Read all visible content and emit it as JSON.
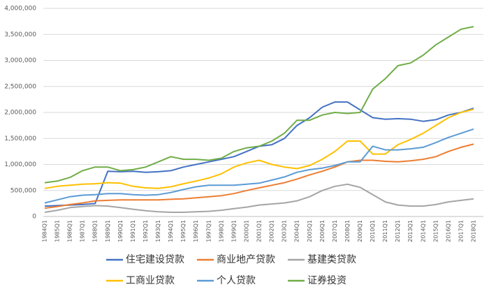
{
  "chart_data": {
    "type": "line",
    "categories": [
      "1984Q1",
      "1985Q1",
      "1986Q1",
      "1987Q1",
      "1988Q1",
      "1989Q1",
      "1990Q1",
      "1991Q1",
      "1992Q1",
      "1993Q1",
      "1994Q1",
      "1995Q1",
      "1996Q1",
      "1997Q1",
      "1998Q1",
      "1999Q1",
      "2000Q1",
      "2001Q1",
      "2002Q1",
      "2003Q1",
      "2004Q1",
      "2005Q1",
      "2006Q1",
      "2007Q1",
      "2008Q1",
      "2009Q1",
      "2010Q1",
      "2011Q1",
      "2012Q1",
      "2013Q1",
      "2014Q1",
      "2015Q1",
      "2016Q1",
      "2017Q1",
      "2018Q1"
    ],
    "series": [
      {
        "name": "住宅建设贷款",
        "color": "#4472c4",
        "values": [
          200000,
          210000,
          220000,
          230000,
          250000,
          870000,
          860000,
          870000,
          850000,
          860000,
          880000,
          950000,
          1000000,
          1050000,
          1100000,
          1150000,
          1250000,
          1350000,
          1380000,
          1500000,
          1750000,
          1900000,
          2100000,
          2200000,
          2200000,
          2050000,
          1900000,
          1870000,
          1880000,
          1870000,
          1830000,
          1860000,
          1950000,
          2000000,
          2080000
        ]
      },
      {
        "name": "商业地产贷款",
        "color": "#ed7d31",
        "values": [
          160000,
          190000,
          230000,
          260000,
          300000,
          310000,
          320000,
          320000,
          320000,
          320000,
          330000,
          340000,
          360000,
          380000,
          400000,
          440000,
          500000,
          550000,
          600000,
          650000,
          720000,
          800000,
          870000,
          950000,
          1050000,
          1080000,
          1080000,
          1060000,
          1050000,
          1070000,
          1100000,
          1150000,
          1250000,
          1330000,
          1390000
        ]
      },
      {
        "name": "基建类贷款",
        "color": "#a5a5a5",
        "values": [
          80000,
          120000,
          170000,
          190000,
          210000,
          200000,
          170000,
          140000,
          110000,
          90000,
          80000,
          80000,
          90000,
          100000,
          120000,
          150000,
          180000,
          220000,
          240000,
          260000,
          300000,
          380000,
          500000,
          580000,
          620000,
          560000,
          420000,
          280000,
          220000,
          200000,
          200000,
          230000,
          280000,
          310000,
          340000
        ]
      },
      {
        "name": "工商业贷款",
        "color": "#ffc000",
        "values": [
          540000,
          580000,
          600000,
          620000,
          630000,
          650000,
          640000,
          580000,
          550000,
          540000,
          570000,
          630000,
          680000,
          740000,
          820000,
          950000,
          1030000,
          1080000,
          1000000,
          950000,
          920000,
          980000,
          1100000,
          1250000,
          1450000,
          1450000,
          1200000,
          1200000,
          1380000,
          1480000,
          1600000,
          1750000,
          1900000,
          2000000,
          2060000
        ]
      },
      {
        "name": "个人贷款",
        "color": "#5b9bd5",
        "values": [
          260000,
          320000,
          380000,
          410000,
          420000,
          440000,
          440000,
          420000,
          410000,
          420000,
          460000,
          520000,
          570000,
          600000,
          600000,
          600000,
          620000,
          640000,
          700000,
          760000,
          850000,
          900000,
          930000,
          980000,
          1050000,
          1050000,
          1350000,
          1280000,
          1280000,
          1300000,
          1330000,
          1420000,
          1520000,
          1600000,
          1680000
        ]
      },
      {
        "name": "证券投资",
        "color": "#70ad47",
        "values": [
          650000,
          680000,
          750000,
          880000,
          950000,
          950000,
          880000,
          900000,
          950000,
          1050000,
          1150000,
          1100000,
          1100000,
          1080000,
          1120000,
          1250000,
          1320000,
          1350000,
          1450000,
          1600000,
          1850000,
          1850000,
          1950000,
          2000000,
          1980000,
          2000000,
          2450000,
          2650000,
          2900000,
          2950000,
          3100000,
          3300000,
          3450000,
          3600000,
          3650000
        ]
      }
    ],
    "ylim": [
      0,
      4000000
    ],
    "yticks": [
      0,
      {
        "value": 500000,
        "label": "500,000"
      },
      {
        "value": 1000000,
        "label": "1,000,000"
      },
      {
        "value": 1500000,
        "label": "1,500,000"
      },
      {
        "value": 2000000,
        "label": "2,000,000"
      },
      {
        "value": 2500000,
        "label": "2,500,000"
      },
      {
        "value": 3000000,
        "label": "3,000,000"
      },
      {
        "value": 3500000,
        "label": "3,500,000"
      },
      {
        "value": 4000000,
        "label": "4,000,000"
      }
    ],
    "grid": true
  }
}
